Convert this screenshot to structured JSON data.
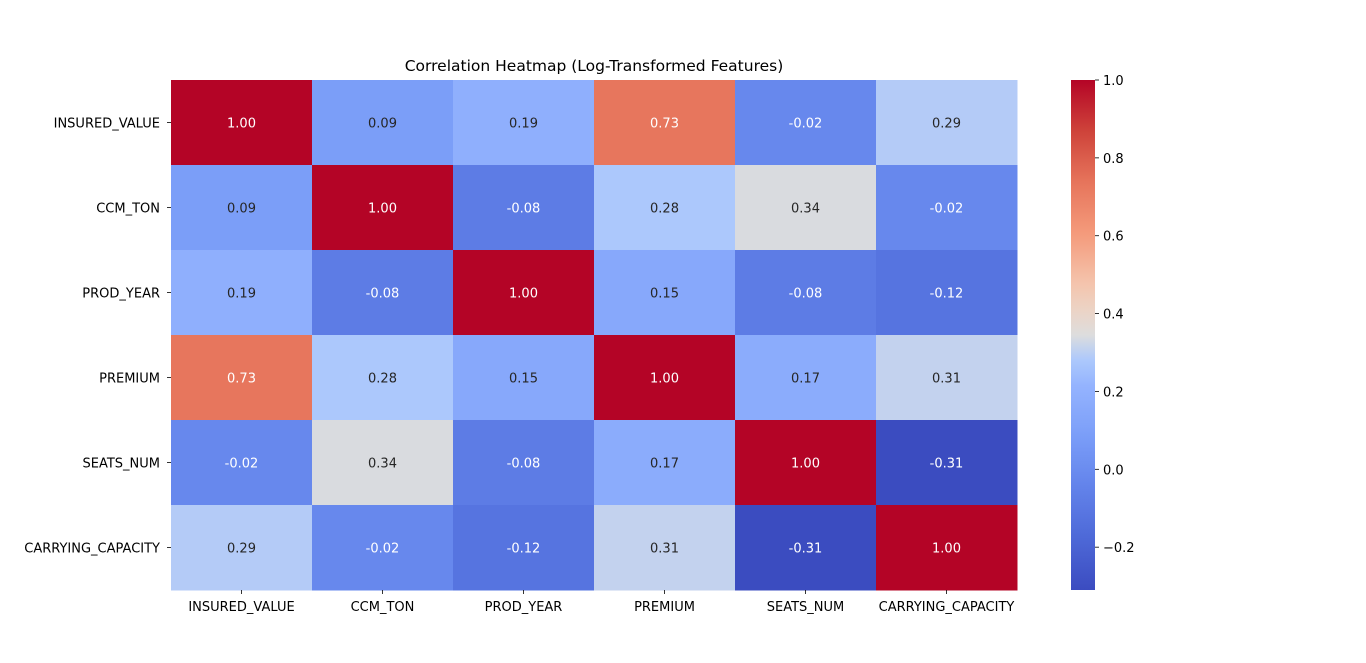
{
  "chart_data": {
    "type": "heatmap",
    "title": "Correlation Heatmap (Log-Transformed Features)",
    "xlabel": "",
    "ylabel": "",
    "x_categories": [
      "INSURED_VALUE",
      "CCM_TON",
      "PROD_YEAR",
      "PREMIUM",
      "SEATS_NUM",
      "CARRYING_CAPACITY"
    ],
    "y_categories": [
      "INSURED_VALUE",
      "CCM_TON",
      "PROD_YEAR",
      "PREMIUM",
      "SEATS_NUM",
      "CARRYING_CAPACITY"
    ],
    "values": [
      [
        1.0,
        0.09,
        0.19,
        0.73,
        -0.02,
        0.29
      ],
      [
        0.09,
        1.0,
        -0.08,
        0.28,
        0.34,
        -0.02
      ],
      [
        0.19,
        -0.08,
        1.0,
        0.15,
        -0.08,
        -0.12
      ],
      [
        0.73,
        0.28,
        0.15,
        1.0,
        0.17,
        0.31
      ],
      [
        -0.02,
        0.34,
        -0.08,
        0.17,
        1.0,
        -0.31
      ],
      [
        0.29,
        -0.02,
        -0.12,
        0.31,
        -0.31,
        1.0
      ]
    ],
    "value_format": "0.00",
    "colormap": "coolwarm",
    "vmin": -0.31,
    "vmax": 1.0,
    "colorbar_ticks": [
      1.0,
      0.8,
      0.6,
      0.4,
      0.2,
      0.0,
      -0.2
    ],
    "colorbar_tick_labels": [
      "1.0",
      "0.8",
      "0.6",
      "0.4",
      "0.2",
      "0.0",
      "−0.2"
    ],
    "grid": false,
    "legend": "colorbar-right",
    "colors": {
      "low": "#3b4cc0",
      "mid": "#dddddd",
      "high": "#b40426"
    }
  }
}
